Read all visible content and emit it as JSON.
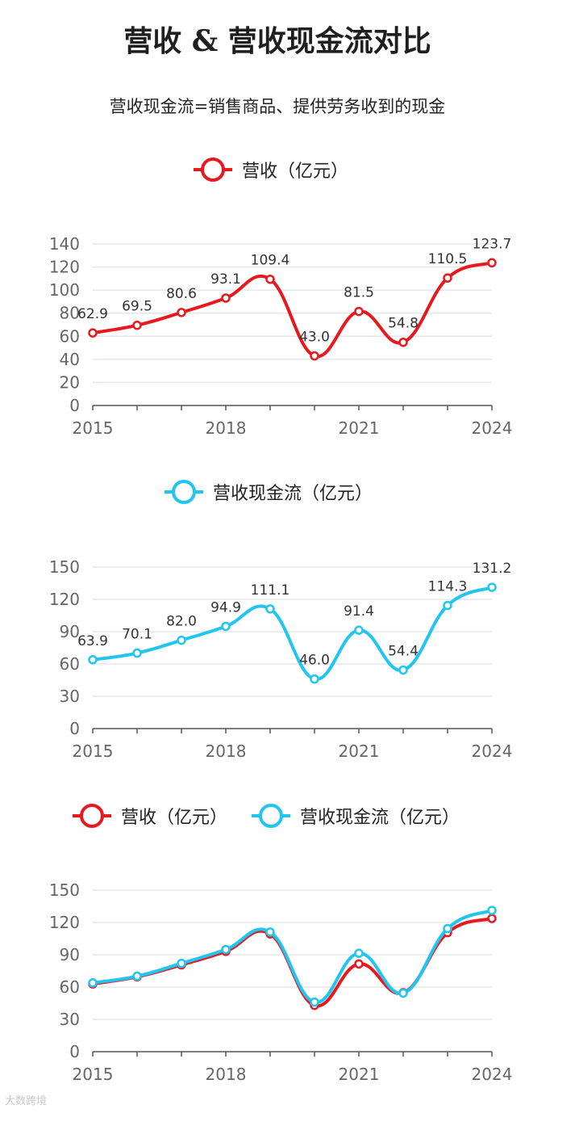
{
  "title": "营收 & 营收现金流对比",
  "subtitle": "营收现金流=销售商品、提供劳务收到的现金",
  "watermark": "大数跨境",
  "colors": {
    "revenue": "#e8191e",
    "cashflow": "#20c6f0"
  },
  "chart_data": [
    {
      "type": "line",
      "x": [
        2015,
        2016,
        2017,
        2018,
        2019,
        2020,
        2021,
        2022,
        2023,
        2024
      ],
      "xticks": [
        "2015",
        "2018",
        "2021",
        "2024"
      ],
      "series": [
        {
          "name": "营收（亿元）",
          "values": [
            62.9,
            69.5,
            80.6,
            93.1,
            109.4,
            43.0,
            81.5,
            54.8,
            110.5,
            123.7
          ],
          "labels": [
            "62.9",
            "69.5",
            "80.6",
            "93.1",
            "109.4",
            "43.0",
            "81.5",
            "54.8",
            "110.5",
            "123.7"
          ]
        }
      ],
      "ylim": [
        0,
        140
      ],
      "yticks": [
        0,
        20,
        40,
        60,
        80,
        100,
        120,
        140
      ],
      "legend": "top-center"
    },
    {
      "type": "line",
      "x": [
        2015,
        2016,
        2017,
        2018,
        2019,
        2020,
        2021,
        2022,
        2023,
        2024
      ],
      "xticks": [
        "2015",
        "2018",
        "2021",
        "2024"
      ],
      "series": [
        {
          "name": "营收现金流（亿元）",
          "values": [
            63.9,
            70.1,
            82.0,
            94.9,
            111.1,
            46.0,
            91.4,
            54.4,
            114.3,
            131.2
          ],
          "labels": [
            "63.9",
            "70.1",
            "82.0",
            "94.9",
            "111.1",
            "46.0",
            "91.4",
            "54.4",
            "114.3",
            "131.2"
          ]
        }
      ],
      "ylim": [
        0,
        150
      ],
      "yticks": [
        0,
        30,
        60,
        90,
        120,
        150
      ],
      "legend": "top-center"
    },
    {
      "type": "line",
      "x": [
        2015,
        2016,
        2017,
        2018,
        2019,
        2020,
        2021,
        2022,
        2023,
        2024
      ],
      "xticks": [
        "2015",
        "2018",
        "2021",
        "2024"
      ],
      "series": [
        {
          "name": "营收（亿元）",
          "values": [
            62.9,
            69.5,
            80.6,
            93.1,
            109.4,
            43.0,
            81.5,
            54.8,
            110.5,
            123.7
          ]
        },
        {
          "name": "营收现金流（亿元）",
          "values": [
            63.9,
            70.1,
            82.0,
            94.9,
            111.1,
            46.0,
            91.4,
            54.4,
            114.3,
            131.2
          ]
        }
      ],
      "ylim": [
        0,
        150
      ],
      "yticks": [
        0,
        30,
        60,
        90,
        120,
        150
      ],
      "legend": "top-center"
    }
  ]
}
